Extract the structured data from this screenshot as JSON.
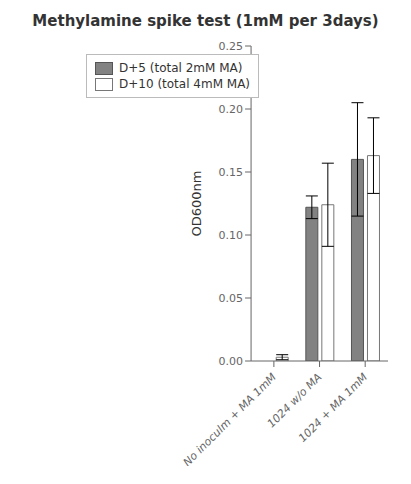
{
  "chart_data": {
    "type": "bar",
    "title": "Methylamine spike test (1mM per 3days)",
    "y_label": "OD600nm",
    "categories": [
      "No inoculm + MA 1mM",
      "1024 w/o MA",
      "1024 + MA 1mM"
    ],
    "series": [
      {
        "name": "D+5 (total 2mM MA)",
        "color": "#828282",
        "values": [
          0.0,
          0.122,
          0.16
        ],
        "errors": [
          0.001,
          0.009,
          0.045
        ]
      },
      {
        "name": "D+10 (total 4mM MA)",
        "color": "#ffffff",
        "values": [
          0.003,
          0.124,
          0.163
        ],
        "errors": [
          0.002,
          0.033,
          0.03
        ]
      }
    ],
    "ylim": [
      0,
      0.25
    ],
    "yticks": [
      {
        "value": 0,
        "label": "0.00"
      },
      0.05,
      {
        "value": 0.1,
        "label": "0.10"
      },
      0.15,
      {
        "value": 0.2,
        "label": "0.20"
      },
      0.25
    ],
    "grid": false,
    "legend": "upper left"
  }
}
